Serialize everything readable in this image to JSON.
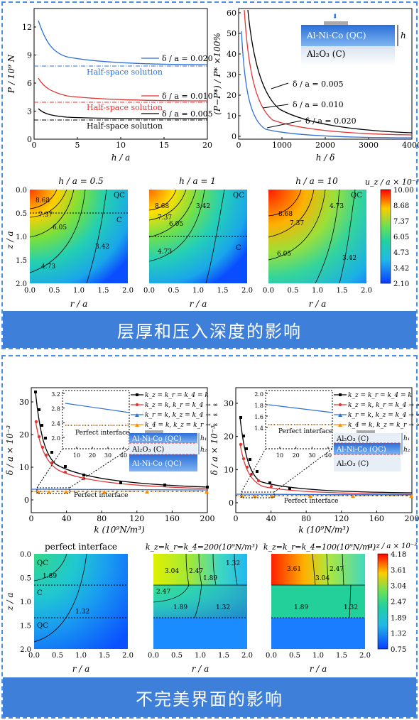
{
  "sections": [
    {
      "banner": "层厚和压入深度的影响"
    },
    {
      "banner": "不完美界面的影响"
    }
  ],
  "fig_a": {
    "xlabel": "h / a",
    "ylabel": "P / 10⁹ N",
    "xticks": [
      "0",
      "5",
      "10",
      "15",
      "20"
    ],
    "yticks": [
      "0",
      "3",
      "6",
      "9",
      "12"
    ],
    "legends": [
      "δ / a = 0.020",
      "δ / a = 0.010",
      "δ / a = 0.005"
    ],
    "halfspace": [
      "Half-space solution",
      "Half-space solution",
      "Half-space solution"
    ]
  },
  "fig_b": {
    "xlabel": "h / δ",
    "ylabel": "(P−P*) / P* ×100%",
    "xticks": [
      "0",
      "1000",
      "2000",
      "3000",
      "4000"
    ],
    "yticks": [
      "0",
      "10",
      "20",
      "30",
      "40",
      "50",
      "60"
    ],
    "legends": [
      "δ / a = 0.005",
      "δ / a = 0.010",
      "δ / a = 0.020"
    ],
    "inset_layer1": "Al-Ni-Co (QC)",
    "inset_layer2": "Al₂O₃ (C)",
    "inset_h": "h"
  },
  "contours1": {
    "titles": [
      "h / a = 0.5",
      "h / a = 1",
      "h / a = 10"
    ],
    "ylabel": "z / a",
    "xlabel": "r / a",
    "xticks": [
      "0.0",
      "0.5",
      "1.0",
      "1.5",
      "2.0"
    ],
    "yticks": [
      "0.0",
      "0.5",
      "1.0",
      "1.5",
      "2.0"
    ],
    "labels1": [
      "8.68",
      "7.37",
      "6.05",
      "4.73",
      "3.42"
    ],
    "labels2": [
      "8.68",
      "7.37",
      "6.05",
      "4.73",
      "3.42"
    ],
    "labels3": [
      "8.68",
      "7.37",
      "6.05",
      "4.73",
      "3.42"
    ],
    "qc": "QC",
    "c": "C",
    "colorbar_title": "u_z / a × 10⁻³",
    "colorbar_ticks": [
      "10.00",
      "8.68",
      "7.37",
      "6.05",
      "4.73",
      "3.42",
      "2.10"
    ]
  },
  "fig_c": {
    "xlabel": "k (10⁹N/m³)",
    "ylabel": "δ / a × 10⁻³",
    "xticks": [
      "0",
      "40",
      "80",
      "120",
      "160",
      "200"
    ],
    "yticks": [
      "0",
      "10",
      "20",
      "30"
    ],
    "inset_xticks": [
      "10",
      "20",
      "30",
      "40"
    ],
    "inset_yticks": [
      "2.0",
      "2.4",
      "2.8",
      "3.2"
    ],
    "inset_label": "Perfect interface",
    "main_label": "Perfect interface",
    "legends": [
      "k_z = k_r = k_4 = k",
      "k_z = k, k_r = k_4 → ∞",
      "k_r = k, k_z = k_4 → ∞",
      "k_4 = k, k_z = k_r → ∞"
    ],
    "stack": [
      "Al-Ni-Co (QC)",
      "Al₂O₃ (C)",
      "Al-Ni-Co (QC)"
    ],
    "h_labels": [
      "h₁",
      "h₂"
    ]
  },
  "fig_d": {
    "xlabel": "k (10⁹N/m³)",
    "ylabel": "δ / a × 10⁻³",
    "xticks": [
      "0",
      "40",
      "80",
      "120",
      "160",
      "200"
    ],
    "yticks": [
      "0",
      "10",
      "20",
      "30"
    ],
    "inset_xticks": [
      "10",
      "20",
      "30",
      "40"
    ],
    "inset_yticks": [
      "1.4",
      "1.6",
      "1.8",
      "2.0"
    ],
    "inset_label": "Perfect interface",
    "main_label": "Perfect interface",
    "legends": [
      "k_z = k_r = k_4 = k",
      "k_z = k, k_r = k_4 → ∞",
      "k_r = k, k_z = k_4 → ∞",
      "k_4 = k, k_z = k_r → ∞"
    ],
    "stack": [
      "Al₂O₃ (C)",
      "Al-Ni-Co (QC)",
      "Al₂O₃ (C)"
    ],
    "h_labels": [
      "h₁",
      "h₂"
    ]
  },
  "contours2": {
    "titles": [
      "perfect interface",
      "k_z=k_r=k_4=200(10⁹N/m³)",
      "k_z=k_r=k_4=100(10⁹N/m³)"
    ],
    "ylabel": "z / a",
    "xlabel": "r / a",
    "xticks": [
      "0.0",
      "0.5",
      "1.0",
      "1.5",
      "2.0"
    ],
    "yticks": [
      "0.0",
      "0.5",
      "1.0",
      "1.5",
      "2.0"
    ],
    "labels1": [
      "1.89",
      "1.32"
    ],
    "labels2": [
      "3.04",
      "2.47",
      "1.89",
      "2.47",
      "1.89",
      "1.32",
      "1.32"
    ],
    "labels3": [
      "3.61",
      "3.04",
      "2.47",
      "1.89",
      "1.32"
    ],
    "qc1": "QC",
    "c1": "C",
    "qc2": "QC",
    "colorbar_title": "u_z / a × 10⁻³",
    "colorbar_ticks": [
      "4.18",
      "3.61",
      "3.04",
      "2.47",
      "1.89",
      "1.32",
      "0.75"
    ]
  },
  "colors": {
    "banner": "#3d7fd9",
    "frame": "#4a90e2",
    "blue": "#2f6fd6",
    "red": "#e53535",
    "black": "#000000",
    "orange": "#ff8c00"
  }
}
